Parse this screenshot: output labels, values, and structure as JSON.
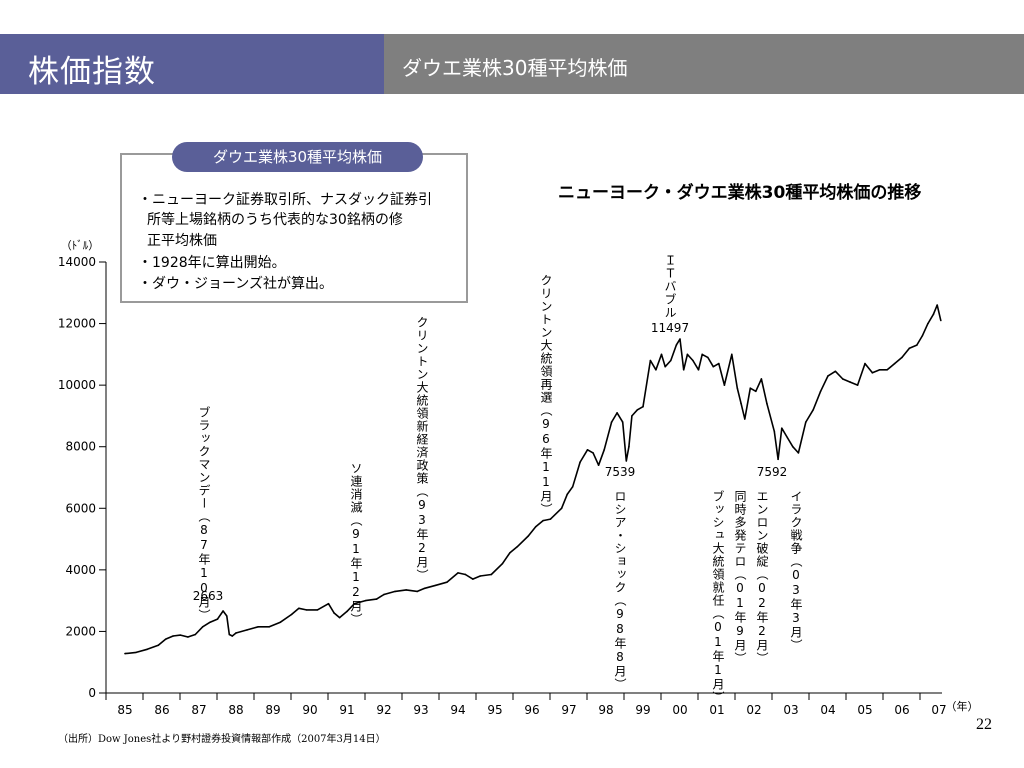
{
  "header": {
    "title": "株価指数",
    "subtitle": "ダウエ業株30種平均株価"
  },
  "infobox": {
    "tab": "ダウエ業株30種平均株価",
    "lines": [
      "・ニューヨーク証券取引所、ナスダック証券引",
      "所等上場銘柄のうち代表的な30銘柄の修",
      "正平均株価",
      "・1928年に算出開始。",
      "・ダウ・ジョーンズ社が算出。"
    ]
  },
  "chart_data": {
    "type": "line",
    "title": "ニューヨーク・ダウエ業株30種平均株価の推移",
    "ylabel": "（ﾄﾞﾙ）",
    "xunit": "（年）",
    "ylim": [
      0,
      14000
    ],
    "yticks": [
      0,
      2000,
      4000,
      6000,
      8000,
      10000,
      12000,
      14000
    ],
    "ytick_labels": [
      "0",
      "2000",
      "4000",
      "6000",
      "8000",
      "10000",
      "12000",
      "14000"
    ],
    "xlim": [
      1985,
      2007.1
    ],
    "xticks": [
      1985,
      1986,
      1987,
      1988,
      1989,
      1990,
      1991,
      1992,
      1993,
      1994,
      1995,
      1996,
      1997,
      1998,
      1999,
      2000,
      2001,
      2002,
      2003,
      2004,
      2005,
      2006,
      2007
    ],
    "xtick_labels": [
      "85",
      "86",
      "87",
      "88",
      "89",
      "90",
      "91",
      "92",
      "93",
      "94",
      "95",
      "96",
      "97",
      "98",
      "99",
      "00",
      "01",
      "02",
      "03",
      "04",
      "05",
      "06",
      "07"
    ],
    "grid": false,
    "series": [
      {
        "color": "#000000",
        "x": [
          1985.0,
          1985.3,
          1985.6,
          1985.9,
          1986.1,
          1986.3,
          1986.5,
          1986.7,
          1986.9,
          1987.1,
          1987.3,
          1987.5,
          1987.65,
          1987.75,
          1987.82,
          1987.9,
          1988.0,
          1988.3,
          1988.6,
          1988.9,
          1989.2,
          1989.5,
          1989.7,
          1989.9,
          1990.2,
          1990.5,
          1990.65,
          1990.8,
          1991.0,
          1991.2,
          1991.5,
          1991.8,
          1992.0,
          1992.3,
          1992.6,
          1992.9,
          1993.1,
          1993.4,
          1993.7,
          1994.0,
          1994.2,
          1994.4,
          1994.6,
          1994.9,
          1995.2,
          1995.4,
          1995.6,
          1995.9,
          1996.1,
          1996.3,
          1996.5,
          1996.8,
          1996.95,
          1997.1,
          1997.3,
          1997.5,
          1997.65,
          1997.8,
          1997.95,
          1998.15,
          1998.3,
          1998.45,
          1998.55,
          1998.62,
          1998.7,
          1998.85,
          1999.0,
          1999.2,
          1999.35,
          1999.5,
          1999.6,
          1999.75,
          1999.9,
          2000.0,
          2000.1,
          2000.2,
          2000.35,
          2000.5,
          2000.6,
          2000.75,
          2000.9,
          2001.05,
          2001.2,
          2001.4,
          2001.55,
          2001.65,
          2001.75,
          2001.9,
          2002.05,
          2002.2,
          2002.35,
          2002.55,
          2002.65,
          2002.75,
          2002.9,
          2003.05,
          2003.2,
          2003.4,
          2003.6,
          2003.8,
          2004.0,
          2004.2,
          2004.4,
          2004.6,
          2004.8,
          2005.0,
          2005.2,
          2005.4,
          2005.6,
          2005.8,
          2006.0,
          2006.2,
          2006.4,
          2006.55,
          2006.7,
          2006.85,
          2006.95,
          2007.05
        ],
        "y": [
          1280,
          1320,
          1420,
          1550,
          1750,
          1850,
          1880,
          1820,
          1900,
          2150,
          2300,
          2400,
          2663,
          2500,
          1900,
          1850,
          1950,
          2050,
          2150,
          2150,
          2300,
          2550,
          2750,
          2700,
          2700,
          2900,
          2600,
          2450,
          2650,
          2900,
          3000,
          3050,
          3200,
          3300,
          3350,
          3300,
          3400,
          3500,
          3600,
          3900,
          3850,
          3700,
          3800,
          3850,
          4200,
          4550,
          4750,
          5100,
          5400,
          5600,
          5650,
          6000,
          6450,
          6700,
          7500,
          7900,
          7800,
          7400,
          7900,
          8800,
          9100,
          8800,
          7539,
          8000,
          9000,
          9200,
          9300,
          10800,
          10500,
          11000,
          10600,
          10800,
          11300,
          11497,
          10500,
          11000,
          10800,
          10500,
          11000,
          10900,
          10600,
          10700,
          10000,
          11000,
          9900,
          9400,
          8900,
          9900,
          9800,
          10200,
          9400,
          8500,
          7592,
          8600,
          8300,
          8000,
          7800,
          8800,
          9200,
          9800,
          10300,
          10450,
          10200,
          10100,
          10000,
          10700,
          10400,
          10500,
          10500,
          10700,
          10900,
          11200,
          11300,
          11600,
          12000,
          12300,
          12600,
          12100
        ]
      }
    ],
    "annotations": [
      {
        "value": "2663",
        "x": 1987.65,
        "kind": "value"
      },
      {
        "value": "7539",
        "x": 1998.62,
        "kind": "value"
      },
      {
        "value": "11497",
        "x": 2000.0,
        "kind": "value"
      },
      {
        "value": "7592",
        "x": 2002.75,
        "kind": "value"
      },
      {
        "value": "ブラックマンデー（87年10月）",
        "x": 1987.8,
        "kind": "event"
      },
      {
        "value": "ソ連消滅（91年12月）",
        "x": 1991.95,
        "kind": "event"
      },
      {
        "value": "クリントン大統領新経済政策（93年2月）",
        "x": 1993.1,
        "kind": "event"
      },
      {
        "value": "クリントン大統領再選（96年11月）",
        "x": 1996.85,
        "kind": "event"
      },
      {
        "value": "ＩＴバブル",
        "x": 2000.0,
        "kind": "event"
      },
      {
        "value": "ロシア・ショック（98年8月）",
        "x": 1998.6,
        "kind": "event"
      },
      {
        "value": "ブッシュ大統領就任（01年1月）",
        "x": 2001.05,
        "kind": "event"
      },
      {
        "value": "同時多発テロ（01年9月）",
        "x": 2001.7,
        "kind": "event"
      },
      {
        "value": "エンロン破綻（02年2月）",
        "x": 2002.1,
        "kind": "event"
      },
      {
        "value": "イラク戦争（03年3月）",
        "x": 2003.2,
        "kind": "event"
      }
    ]
  },
  "footer": {
    "source": "（出所）Dow Jones社より野村證券投資情報部作成（2007年3月14日）",
    "page_number": "22"
  }
}
